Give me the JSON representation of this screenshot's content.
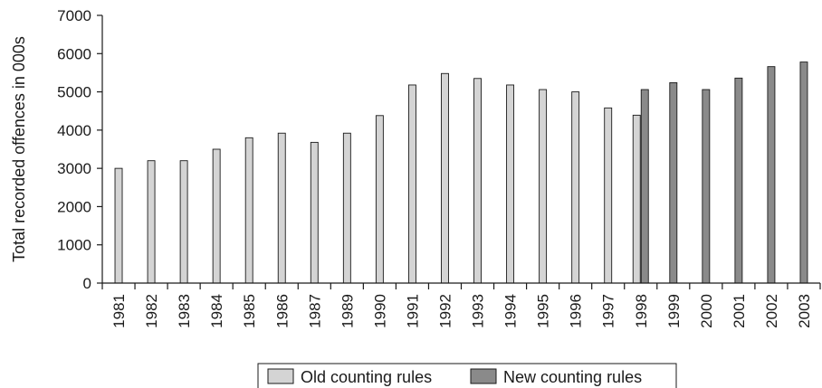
{
  "chart_data": {
    "type": "bar",
    "title": "",
    "xlabel": "",
    "ylabel": "Total recorded offences in 000s",
    "ylim": [
      0,
      7000
    ],
    "yticks": [
      0,
      1000,
      2000,
      3000,
      4000,
      5000,
      6000,
      7000
    ],
    "grid": false,
    "legend_position": "bottom",
    "categories": [
      "1981",
      "1982",
      "1983",
      "1984",
      "1985",
      "1986",
      "1987",
      "1989",
      "1990",
      "1991",
      "1992",
      "1993",
      "1994",
      "1995",
      "1996",
      "1997",
      "1998",
      "1999",
      "2000",
      "2001",
      "2002",
      "2003"
    ],
    "series": [
      {
        "name": "Old counting rules",
        "color": "#d4d4d4",
        "values": [
          3000,
          3200,
          3200,
          3500,
          3800,
          3920,
          3680,
          3920,
          4380,
          5180,
          5480,
          5350,
          5180,
          5060,
          5000,
          4580,
          4390,
          null,
          null,
          null,
          null,
          null
        ]
      },
      {
        "name": "New counting rules",
        "color": "#8a8a8a",
        "values": [
          null,
          null,
          null,
          null,
          null,
          null,
          null,
          null,
          null,
          null,
          null,
          null,
          null,
          null,
          null,
          null,
          5060,
          5240,
          5060,
          5360,
          5660,
          5780
        ]
      }
    ]
  }
}
